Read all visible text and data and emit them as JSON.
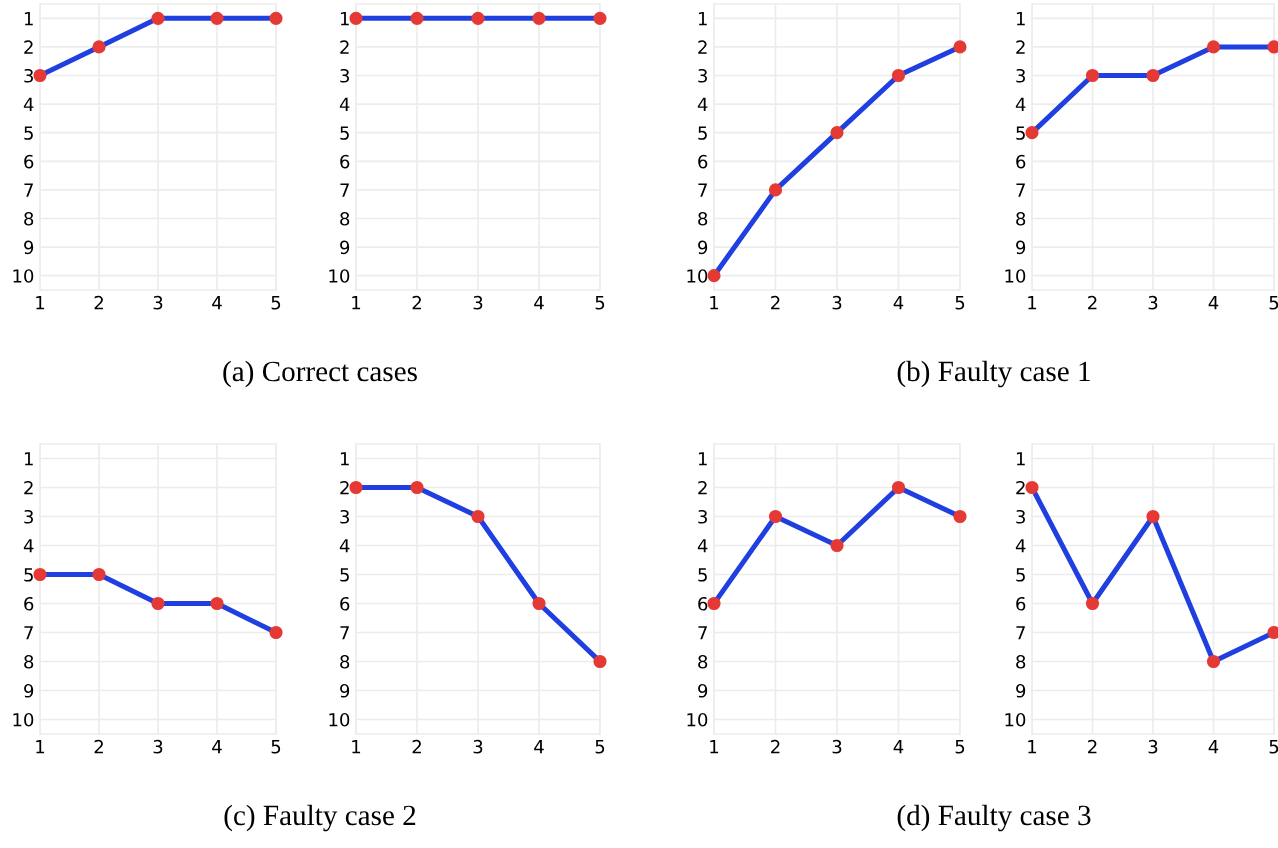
{
  "chart_data": [
    {
      "type": "line",
      "x": [
        1,
        2,
        3,
        4,
        5
      ],
      "series": [
        {
          "color": "#1f3fe0",
          "colors": [
            "#e53935",
            "#e53935",
            "#e53935",
            "#e53935",
            "#e53935"
          ],
          "values": [
            3,
            2,
            1,
            1,
            1
          ]
        }
      ],
      "xlim": [
        1,
        5
      ],
      "ylim": [
        10.5,
        0.5
      ],
      "xticks": [
        1,
        2,
        3,
        4,
        5
      ],
      "yticks": [
        1,
        2,
        3,
        4,
        5,
        6,
        7,
        8,
        9,
        10
      ],
      "grid": true,
      "marker": "circle",
      "line_style": "solid",
      "annotations": [
        "(a) Correct cases"
      ]
    },
    {
      "type": "line",
      "x": [
        1,
        2,
        3,
        4,
        5
      ],
      "series": [
        {
          "color": "#1f3fe0",
          "colors": [
            "#e53935",
            "#e53935",
            "#e53935",
            "#e53935",
            "#e53935"
          ],
          "values": [
            1,
            1,
            1,
            1,
            1
          ]
        }
      ],
      "xlim": [
        1,
        5
      ],
      "ylim": [
        10.5,
        0.5
      ],
      "xticks": [
        1,
        2,
        3,
        4,
        5
      ],
      "yticks": [
        1,
        2,
        3,
        4,
        5,
        6,
        7,
        8,
        9,
        10
      ],
      "grid": true,
      "marker": "circle",
      "line_style": "solid"
    },
    {
      "type": "line",
      "x": [
        1,
        2,
        3,
        4,
        5
      ],
      "series": [
        {
          "color": "#1f3fe0",
          "colors": [
            "#e53935",
            "#e53935",
            "#e53935",
            "#e53935",
            "#e53935"
          ],
          "values": [
            10,
            7,
            5,
            3,
            2
          ]
        }
      ],
      "xlim": [
        1,
        5
      ],
      "ylim": [
        10.5,
        0.5
      ],
      "xticks": [
        1,
        2,
        3,
        4,
        5
      ],
      "yticks": [
        1,
        2,
        3,
        4,
        5,
        6,
        7,
        8,
        9,
        10
      ],
      "grid": true,
      "marker": "circle",
      "line_style": "solid",
      "annotations": [
        "(b) Faulty case 1"
      ]
    },
    {
      "type": "line",
      "x": [
        1,
        2,
        3,
        4,
        5
      ],
      "series": [
        {
          "color": "#1f3fe0",
          "colors": [
            "#e53935",
            "#e53935",
            "#e53935",
            "#e53935",
            "#e53935"
          ],
          "values": [
            5,
            3,
            3,
            2,
            2
          ]
        }
      ],
      "xlim": [
        1,
        5
      ],
      "ylim": [
        10.5,
        0.5
      ],
      "xticks": [
        1,
        2,
        3,
        4,
        5
      ],
      "yticks": [
        1,
        2,
        3,
        4,
        5,
        6,
        7,
        8,
        9,
        10
      ],
      "grid": true,
      "marker": "circle",
      "line_style": "solid"
    },
    {
      "type": "line",
      "x": [
        1,
        2,
        3,
        4,
        5
      ],
      "series": [
        {
          "color": "#1f3fe0",
          "colors": [
            "#e53935",
            "#e53935",
            "#e53935",
            "#e53935",
            "#e53935"
          ],
          "values": [
            5,
            5,
            6,
            6,
            7
          ]
        }
      ],
      "xlim": [
        1,
        5
      ],
      "ylim": [
        10.5,
        0.5
      ],
      "xticks": [
        1,
        2,
        3,
        4,
        5
      ],
      "yticks": [
        1,
        2,
        3,
        4,
        5,
        6,
        7,
        8,
        9,
        10
      ],
      "grid": true,
      "marker": "circle",
      "line_style": "solid",
      "annotations": [
        "(c) Faulty case 2"
      ]
    },
    {
      "type": "line",
      "x": [
        1,
        2,
        3,
        4,
        5
      ],
      "series": [
        {
          "color": "#1f3fe0",
          "colors": [
            "#e53935",
            "#e53935",
            "#e53935",
            "#e53935",
            "#e53935"
          ],
          "values": [
            2,
            2,
            3,
            6,
            8
          ]
        }
      ],
      "xlim": [
        1,
        5
      ],
      "ylim": [
        10.5,
        0.5
      ],
      "xticks": [
        1,
        2,
        3,
        4,
        5
      ],
      "yticks": [
        1,
        2,
        3,
        4,
        5,
        6,
        7,
        8,
        9,
        10
      ],
      "grid": true,
      "marker": "circle",
      "line_style": "solid"
    },
    {
      "type": "line",
      "x": [
        1,
        2,
        3,
        4,
        5
      ],
      "series": [
        {
          "color": "#1f3fe0",
          "colors": [
            "#e53935",
            "#e53935",
            "#e53935",
            "#e53935",
            "#e53935"
          ],
          "values": [
            6,
            3,
            4,
            2,
            3
          ]
        }
      ],
      "xlim": [
        1,
        5
      ],
      "ylim": [
        10.5,
        0.5
      ],
      "xticks": [
        1,
        2,
        3,
        4,
        5
      ],
      "yticks": [
        1,
        2,
        3,
        4,
        5,
        6,
        7,
        8,
        9,
        10
      ],
      "grid": true,
      "marker": "circle",
      "line_style": "solid",
      "annotations": [
        "(d) Faulty case 3"
      ]
    },
    {
      "type": "line",
      "x": [
        1,
        2,
        3,
        4,
        5
      ],
      "series": [
        {
          "color": "#1f3fe0",
          "colors": [
            "#e53935",
            "#e53935",
            "#e53935",
            "#e53935",
            "#e53935"
          ],
          "values": [
            2,
            6,
            3,
            8,
            7
          ]
        }
      ],
      "xlim": [
        1,
        5
      ],
      "ylim": [
        10.5,
        0.5
      ],
      "xticks": [
        1,
        2,
        3,
        4,
        5
      ],
      "yticks": [
        1,
        2,
        3,
        4,
        5,
        6,
        7,
        8,
        9,
        10
      ],
      "grid": true,
      "marker": "circle",
      "line_style": "solid"
    }
  ]
}
